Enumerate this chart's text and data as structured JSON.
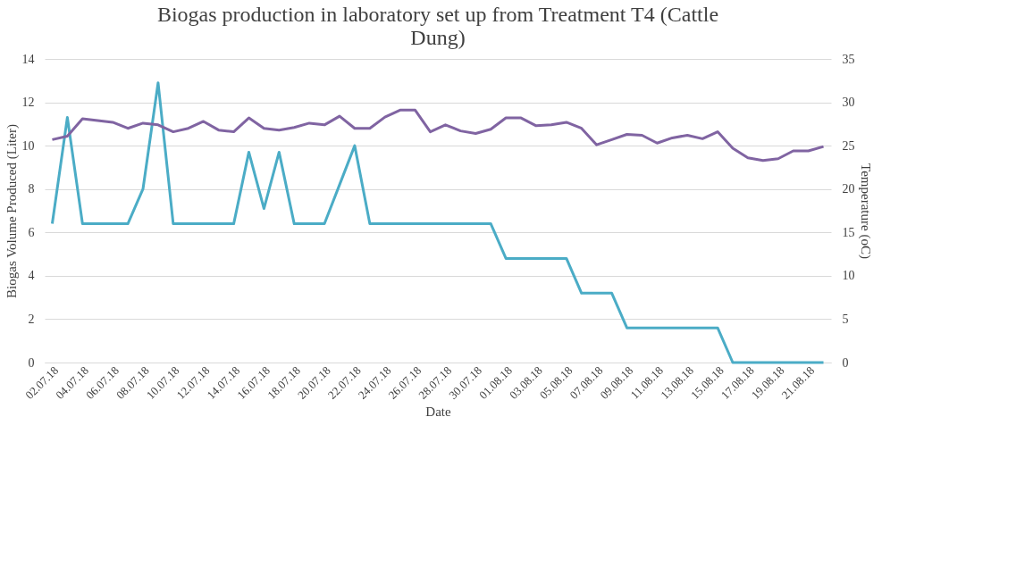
{
  "chart_data": {
    "type": "line",
    "title": "Biogas production in laboratory set up from Treatment T4 (Cattle Dung)",
    "xlabel": "Date",
    "ylabel": "Biogas Volume Produced (Liter)",
    "y2label": "Temperature (oC)",
    "categories": [
      "02.07.18",
      null,
      "04.07.18",
      null,
      "06.07.18",
      null,
      "08.07.18",
      null,
      "10.07.18",
      null,
      "12.07.18",
      null,
      "14.07.18",
      null,
      "16.07.18",
      null,
      "18.07.18",
      null,
      "20.07.18",
      null,
      "22.07.18",
      null,
      "24.07.18",
      null,
      "26.07.18",
      null,
      "28.07.18",
      null,
      "30.07.18",
      null,
      "01.08.18",
      null,
      "03.08.18",
      null,
      "05.08.18",
      null,
      "07.08.18",
      null,
      "09.08.18",
      null,
      "11.08.18",
      null,
      "13.08.18",
      null,
      "15.08.18",
      null,
      "17.08.18",
      null,
      "19.08.18",
      null,
      "21.08.18",
      null
    ],
    "series": [
      {
        "color": "#4bacc6",
        "values": [
          6.4,
          11.3,
          6.4,
          6.4,
          6.4,
          6.4,
          8,
          12.9,
          6.4,
          6.4,
          6.4,
          6.4,
          6.4,
          9.7,
          7.1,
          9.7,
          6.4,
          6.4,
          6.4,
          8.2,
          10,
          6.4,
          6.4,
          6.4,
          6.4,
          6.4,
          6.4,
          6.4,
          6.4,
          6.4,
          4.8,
          4.8,
          4.8,
          4.8,
          4.8,
          3.2,
          3.2,
          3.2,
          1.6,
          1.6,
          1.6,
          1.6,
          1.6,
          1.6,
          1.6,
          0,
          0,
          0,
          0,
          0,
          0,
          0
        ]
      },
      {
        "color": "#8064a2",
        "axis": "y2",
        "values": [
          25.7,
          26.1,
          28.1,
          27.9,
          27.7,
          27.0,
          27.6,
          27.4,
          26.6,
          27.0,
          27.8,
          26.8,
          26.6,
          28.2,
          27.0,
          26.8,
          27.1,
          27.6,
          27.4,
          28.4,
          27.0,
          27.0,
          28.3,
          29.1,
          29.1,
          26.6,
          27.4,
          26.7,
          26.4,
          26.9,
          28.2,
          28.2,
          27.3,
          27.4,
          27.7,
          27.0,
          25.1,
          25.7,
          26.3,
          26.2,
          25.3,
          25.9,
          26.2,
          25.8,
          26.6,
          24.7,
          23.6,
          23.3,
          23.5,
          24.4,
          24.4,
          24.9
        ]
      }
    ],
    "ylim": [
      0,
      14
    ],
    "yticks": [
      0,
      2,
      4,
      6,
      8,
      10,
      12,
      14
    ],
    "y2lim": [
      0,
      35
    ],
    "y2ticks": [
      0,
      5,
      10,
      15,
      20,
      25,
      30,
      35
    ],
    "grid": "y",
    "marker": "none",
    "line_style": "solid"
  }
}
